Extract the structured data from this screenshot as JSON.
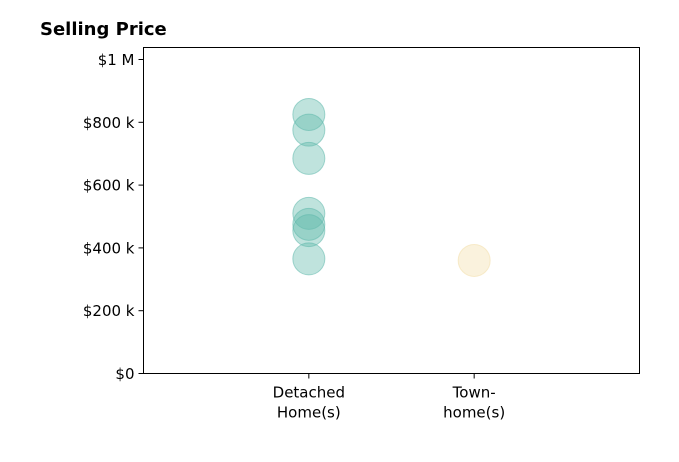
{
  "chart_data": {
    "type": "scatter",
    "title": "Selling Price",
    "xlabel": "",
    "ylabel": "",
    "categories": [
      {
        "lines": [
          "Detached",
          "Home(s)"
        ]
      },
      {
        "lines": [
          "Town-",
          "home(s)"
        ]
      }
    ],
    "xlim": [
      0,
      3
    ],
    "ylim": [
      0,
      1000000
    ],
    "y_ticks": [
      {
        "value": 0,
        "label": "$0"
      },
      {
        "value": 200000,
        "label": "$200 k"
      },
      {
        "value": 400000,
        "label": "$400 k"
      },
      {
        "value": 600000,
        "label": "$600 k"
      },
      {
        "value": 800000,
        "label": "$800 k"
      },
      {
        "value": 1000000,
        "label": "$1 M"
      }
    ],
    "series": [
      {
        "category": 0,
        "color": "#5fb8ab",
        "values": [
          825000,
          775000,
          685000,
          510000,
          475000,
          455000,
          365000
        ]
      },
      {
        "category": 1,
        "color": "#f2deaa",
        "values": [
          360000
        ]
      }
    ],
    "grid": false,
    "legend": "none"
  }
}
